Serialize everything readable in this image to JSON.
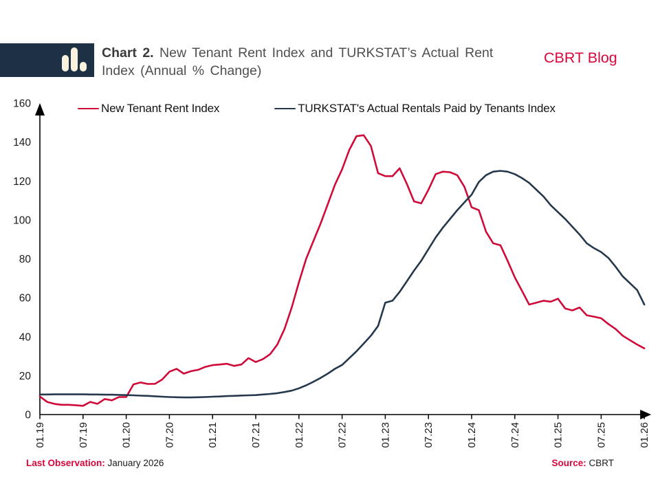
{
  "header": {
    "logo_icon": "bar-chart-icon",
    "title_prefix": "Chart 2.",
    "title_line1": "New Tenant Rent Index and TURKSTAT’s Actual Rent",
    "title_line2": "Index (Annual % Change)",
    "brand": "CBRT Blog"
  },
  "footer": {
    "last_observation_label": "Last Observation:",
    "last_observation_value": "January 2026",
    "source_label": "Source:",
    "source_value": "CBRT"
  },
  "colors": {
    "accent_red": "#d8063a",
    "line_red": "#cf0a38",
    "line_navy": "#25384b",
    "header_band_navy": "#1e3044",
    "icon_cream": "#f8f2df",
    "axis_black": "#000000"
  },
  "chart_data": {
    "type": "line",
    "title": "New Tenant Rent Index and TURKSTAT's Actual Rent Index (Annual % Change)",
    "x_unit": "month",
    "x_start": "2019-01",
    "x_end": "2026-01",
    "x_tick_labels": [
      "01.19",
      "07.19",
      "01.20",
      "07.20",
      "01.21",
      "07.21",
      "01.22",
      "07.22",
      "01.23",
      "07.23",
      "01.24",
      "07.24",
      "01.25",
      "07.25",
      "01.26"
    ],
    "months_per_tick": 6,
    "ylim": [
      0,
      160
    ],
    "y_tick_step": 20,
    "grid": false,
    "legend_position": "top",
    "series": [
      {
        "name": "New Tenant Rent Index",
        "color": "#cf0a38",
        "values": [
          9.3,
          6.5,
          5.5,
          5,
          5,
          4.8,
          4.5,
          6.5,
          5.5,
          8,
          7.3,
          9,
          9,
          15.5,
          16.5,
          15.7,
          15.8,
          18,
          22,
          23.5,
          21,
          22.3,
          23,
          24.5,
          25.4,
          25.7,
          26.1,
          25,
          25.7,
          29,
          27,
          28.5,
          31,
          36,
          44,
          55,
          68,
          80,
          89,
          98,
          108,
          118,
          126,
          136,
          143,
          143.5,
          138,
          124,
          122.5,
          122.5,
          126.5,
          118.5,
          109.5,
          108.5,
          115.5,
          123.5,
          124.8,
          124.5,
          123,
          117,
          106.5,
          105,
          94,
          88,
          87,
          79,
          70.5,
          63.5,
          56.5,
          57.5,
          58.5,
          58,
          59.5,
          54.5,
          53.5,
          55,
          51,
          50.3,
          49.5,
          46.5,
          44,
          40.5,
          38.2,
          36,
          34
        ]
      },
      {
        "name": "TURKSTAT's Actual Rentals Paid by Tenants Index",
        "color": "#25384b",
        "values": [
          10.3,
          10.3,
          10.4,
          10.4,
          10.4,
          10.4,
          10.4,
          10.3,
          10.3,
          10.2,
          10.2,
          10.1,
          10,
          9.9,
          9.7,
          9.6,
          9.4,
          9.2,
          9,
          8.9,
          8.8,
          8.8,
          8.9,
          9,
          9.2,
          9.3,
          9.5,
          9.6,
          9.8,
          9.9,
          10,
          10.3,
          10.6,
          11,
          11.6,
          12.3,
          13.5,
          15,
          16.8,
          18.8,
          21,
          23.5,
          25.5,
          29,
          32.5,
          36.5,
          40.5,
          45.5,
          57.5,
          58.5,
          63,
          68.5,
          74,
          79,
          85,
          91,
          96,
          100.5,
          105,
          109,
          113,
          119.5,
          123,
          124.8,
          125.2,
          124.8,
          123.5,
          121.5,
          119,
          115.5,
          112,
          107.5,
          104,
          100.5,
          96.5,
          92.5,
          88,
          85.5,
          83.5,
          80.5,
          76,
          71,
          67.5,
          64,
          56.5
        ]
      }
    ]
  }
}
